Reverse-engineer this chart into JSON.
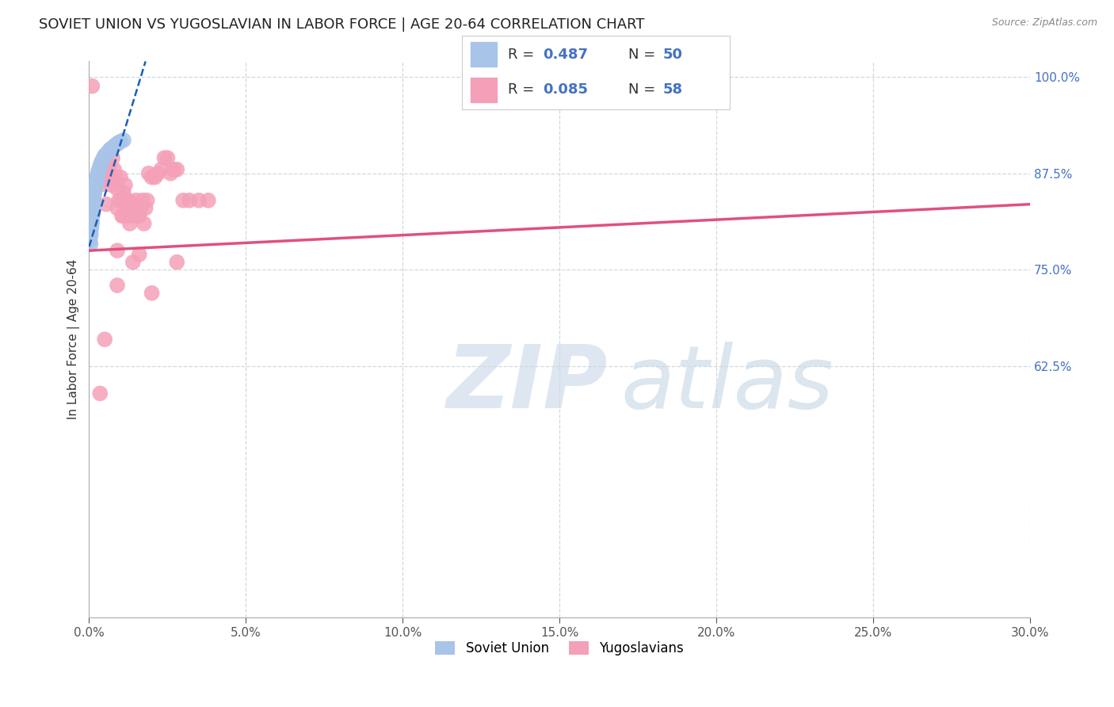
{
  "title": "SOVIET UNION VS YUGOSLAVIAN IN LABOR FORCE | AGE 20-64 CORRELATION CHART",
  "source_text": "Source: ZipAtlas.com",
  "ylabel_label": "In Labor Force | Age 20-64",
  "legend_r1": "0.487",
  "legend_n1": "50",
  "legend_r2": "0.085",
  "legend_n2": "58",
  "legend_label1": "Soviet Union",
  "legend_label2": "Yugoslavians",
  "soviet_color": "#a8c4e8",
  "yugoslav_color": "#f4a0b8",
  "soviet_trend_color": "#1a5fb4",
  "yugoslav_trend_color": "#e05080",
  "soviet_x": [
    0.0003,
    0.0004,
    0.0005,
    0.0005,
    0.0006,
    0.0007,
    0.0008,
    0.0009,
    0.001,
    0.001,
    0.0011,
    0.0012,
    0.0013,
    0.0013,
    0.0014,
    0.0015,
    0.0016,
    0.0017,
    0.0018,
    0.0019,
    0.002,
    0.0021,
    0.0022,
    0.0023,
    0.0024,
    0.0025,
    0.0026,
    0.0027,
    0.0028,
    0.0029,
    0.003,
    0.0032,
    0.0034,
    0.0036,
    0.0038,
    0.004,
    0.0043,
    0.0046,
    0.005,
    0.0055,
    0.006,
    0.0065,
    0.007,
    0.0075,
    0.008,
    0.0085,
    0.009,
    0.0095,
    0.01,
    0.011
  ],
  "soviet_y": [
    0.788,
    0.793,
    0.8,
    0.783,
    0.796,
    0.81,
    0.805,
    0.815,
    0.82,
    0.812,
    0.825,
    0.83,
    0.835,
    0.823,
    0.84,
    0.845,
    0.848,
    0.85,
    0.853,
    0.855,
    0.858,
    0.86,
    0.862,
    0.864,
    0.866,
    0.868,
    0.87,
    0.872,
    0.874,
    0.876,
    0.878,
    0.88,
    0.883,
    0.885,
    0.888,
    0.89,
    0.892,
    0.895,
    0.898,
    0.9,
    0.902,
    0.905,
    0.907,
    0.908,
    0.91,
    0.912,
    0.913,
    0.915,
    0.916,
    0.918
  ],
  "yugoslav_x": [
    0.001,
    0.0035,
    0.005,
    0.0055,
    0.006,
    0.0065,
    0.007,
    0.007,
    0.0075,
    0.008,
    0.0085,
    0.009,
    0.009,
    0.0095,
    0.01,
    0.01,
    0.0105,
    0.011,
    0.011,
    0.0115,
    0.012,
    0.012,
    0.0125,
    0.013,
    0.013,
    0.0135,
    0.014,
    0.0145,
    0.015,
    0.0155,
    0.016,
    0.0165,
    0.017,
    0.0175,
    0.018,
    0.0185,
    0.019,
    0.02,
    0.021,
    0.022,
    0.023,
    0.024,
    0.025,
    0.026,
    0.027,
    0.028,
    0.03,
    0.032,
    0.035,
    0.038,
    0.02,
    0.014,
    0.009,
    0.009,
    0.016,
    0.028,
    0.005,
    0.0035
  ],
  "yugoslav_y": [
    0.988,
    0.86,
    0.88,
    0.835,
    0.87,
    0.885,
    0.865,
    0.86,
    0.895,
    0.88,
    0.87,
    0.855,
    0.83,
    0.84,
    0.87,
    0.84,
    0.82,
    0.85,
    0.82,
    0.86,
    0.82,
    0.84,
    0.84,
    0.81,
    0.825,
    0.82,
    0.83,
    0.83,
    0.84,
    0.82,
    0.82,
    0.83,
    0.84,
    0.81,
    0.83,
    0.84,
    0.875,
    0.87,
    0.87,
    0.875,
    0.88,
    0.895,
    0.895,
    0.875,
    0.88,
    0.88,
    0.84,
    0.84,
    0.84,
    0.84,
    0.72,
    0.76,
    0.775,
    0.73,
    0.77,
    0.76,
    0.66,
    0.59
  ],
  "yugoslav_trend_x0": 0.0,
  "yugoslav_trend_y0": 0.775,
  "yugoslav_trend_x1": 0.3,
  "yugoslav_trend_y1": 0.835,
  "soviet_trend_x0": 0.0,
  "soviet_trend_y0": 0.78,
  "soviet_trend_x1": 0.012,
  "soviet_trend_y1": 0.92,
  "soviet_trend_ext_x1": 0.018,
  "soviet_trend_ext_y1": 1.02,
  "xmin": 0.0,
  "xmax": 0.3,
  "ymin": 0.3,
  "ymax": 1.02,
  "yticks": [
    1.0,
    0.875,
    0.75,
    0.625
  ],
  "xticks": [
    0.0,
    0.05,
    0.1,
    0.15,
    0.2,
    0.25,
    0.3
  ],
  "bg_color": "#ffffff",
  "grid_color": "#d0d8e0",
  "title_fontsize": 13,
  "axis_fontsize": 11,
  "tick_fontsize": 11
}
